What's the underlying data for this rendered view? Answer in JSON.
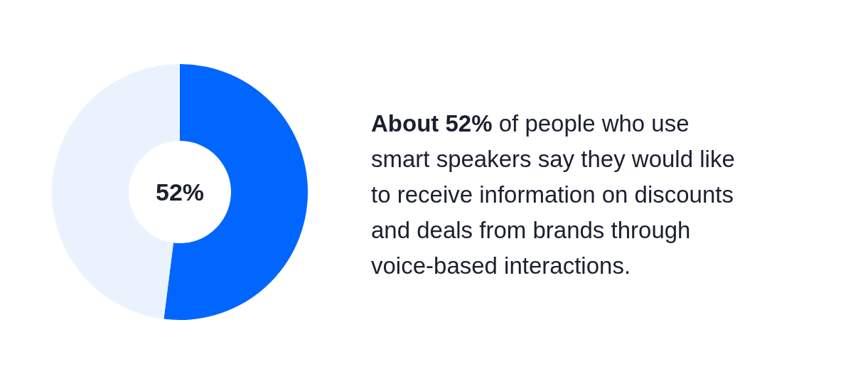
{
  "chart_data": {
    "type": "donut",
    "categories": [
      null,
      null
    ],
    "values": [
      52,
      48
    ],
    "colors": [
      "#0066ff",
      "#eaf3fd"
    ],
    "annotations": [
      "52%",
      "About 52% of people who use smart speakers say they would like to receive information on discounts and deals from brands through voice-based interactions."
    ]
  }
}
